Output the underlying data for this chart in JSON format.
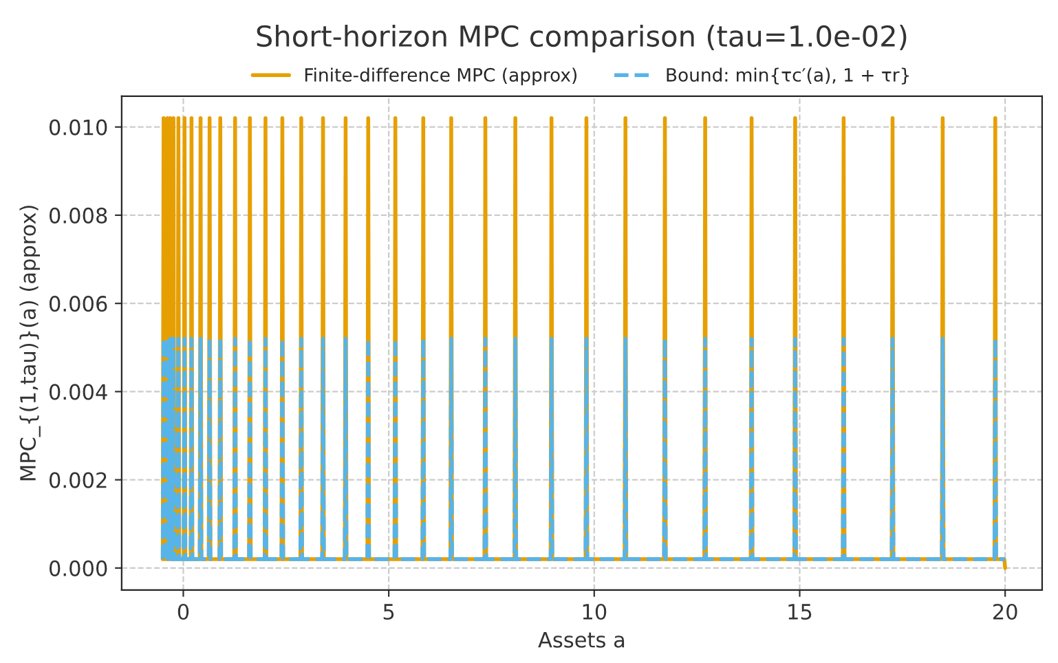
{
  "chart_data": {
    "type": "line",
    "title": "Short-horizon MPC comparison (tau=1.0e-02)",
    "xlabel": "Assets a",
    "ylabel": "MPC_{(1,tau)}(a) (approx)",
    "x": [
      -0.5,
      -0.48,
      -0.46,
      -0.41,
      -0.39,
      -0.37,
      -0.34,
      -0.32,
      -0.3,
      -0.26,
      -0.24,
      -0.22,
      -0.14,
      -0.12,
      -0.1,
      0.01,
      0.03,
      0.05,
      0.18,
      0.2,
      0.22,
      0.4,
      0.42,
      0.44,
      0.62,
      0.64,
      0.66,
      0.88,
      0.9,
      0.92,
      1.24,
      1.26,
      1.28,
      1.6,
      1.62,
      1.64,
      1.98,
      2.0,
      2.02,
      2.39,
      2.41,
      2.43,
      2.85,
      2.87,
      2.89,
      3.38,
      3.4,
      3.42,
      3.93,
      3.95,
      3.97,
      4.48,
      4.5,
      4.52,
      5.14,
      5.16,
      5.18,
      5.82,
      5.84,
      5.86,
      6.5,
      6.52,
      6.54,
      7.33,
      7.35,
      7.37,
      8.06,
      8.08,
      8.1,
      8.94,
      8.96,
      8.98,
      9.79,
      9.81,
      9.83,
      10.74,
      10.76,
      10.78,
      11.7,
      11.72,
      11.74,
      12.68,
      12.7,
      12.72,
      13.81,
      13.83,
      13.85,
      14.87,
      14.89,
      14.91,
      16.05,
      16.07,
      16.09,
      17.24,
      17.26,
      17.28,
      18.46,
      18.48,
      18.5,
      19.74,
      19.76,
      19.78,
      19.98,
      20
    ],
    "series": [
      {
        "name": "Finite-difference MPC (approx)",
        "color": "#e69f00",
        "line_style": "solid",
        "values": [
          0.0002,
          0.0102,
          0.0002,
          0.0002,
          0.0102,
          0.0002,
          0.0002,
          0.0102,
          0.0002,
          0.0002,
          0.0102,
          0.0002,
          0.0002,
          0.0102,
          0.0002,
          0.0002,
          0.0102,
          0.0002,
          0.0002,
          0.0102,
          0.0002,
          0.0002,
          0.0102,
          0.0002,
          0.0002,
          0.0102,
          0.0002,
          0.0002,
          0.0102,
          0.0002,
          0.0002,
          0.0102,
          0.0002,
          0.0002,
          0.0102,
          0.0002,
          0.0002,
          0.0102,
          0.0002,
          0.0002,
          0.0102,
          0.0002,
          0.0002,
          0.0102,
          0.0002,
          0.0002,
          0.0102,
          0.0002,
          0.0002,
          0.0102,
          0.0002,
          0.0002,
          0.0102,
          0.0002,
          0.0002,
          0.0102,
          0.0002,
          0.0002,
          0.0102,
          0.0002,
          0.0002,
          0.0102,
          0.0002,
          0.0002,
          0.0102,
          0.0002,
          0.0002,
          0.0102,
          0.0002,
          0.0002,
          0.0102,
          0.0002,
          0.0002,
          0.0102,
          0.0002,
          0.0002,
          0.0102,
          0.0002,
          0.0002,
          0.0102,
          0.0002,
          0.0002,
          0.0102,
          0.0002,
          0.0002,
          0.0102,
          0.0002,
          0.0002,
          0.0102,
          0.0002,
          0.0002,
          0.0102,
          0.0002,
          0.0002,
          0.0102,
          0.0002,
          0.0002,
          0.0102,
          0.0002,
          0.0002,
          0.0102,
          0.0002,
          0.0002,
          0.0
        ]
      },
      {
        "name": "Bound: min{τc′(a), 1 + τr}",
        "color": "#56b4e9",
        "line_style": "dashed",
        "values": [
          0.0002,
          0.0052,
          0.0002,
          0.0002,
          0.0052,
          0.0002,
          0.0002,
          0.0052,
          0.0002,
          0.0002,
          0.0052,
          0.0002,
          0.0002,
          0.0052,
          0.0002,
          0.0002,
          0.0052,
          0.0002,
          0.0002,
          0.0052,
          0.0002,
          0.0002,
          0.0052,
          0.0002,
          0.0002,
          0.0052,
          0.0002,
          0.0002,
          0.0052,
          0.0002,
          0.0002,
          0.0052,
          0.0002,
          0.0002,
          0.0052,
          0.0002,
          0.0002,
          0.0052,
          0.0002,
          0.0002,
          0.0052,
          0.0002,
          0.0002,
          0.0052,
          0.0002,
          0.0002,
          0.0052,
          0.0002,
          0.0002,
          0.0052,
          0.0002,
          0.0002,
          0.0052,
          0.0002,
          0.0002,
          0.0052,
          0.0002,
          0.0002,
          0.0052,
          0.0002,
          0.0002,
          0.0052,
          0.0002,
          0.0002,
          0.0052,
          0.0002,
          0.0002,
          0.0052,
          0.0002,
          0.0002,
          0.0052,
          0.0002,
          0.0002,
          0.0052,
          0.0002,
          0.0002,
          0.0052,
          0.0002,
          0.0002,
          0.0052,
          0.0002,
          0.0002,
          0.0052,
          0.0002,
          0.0002,
          0.0052,
          0.0002,
          0.0002,
          0.0052,
          0.0002,
          0.0002,
          0.0052,
          0.0002,
          0.0002,
          0.0052,
          0.0002,
          0.0002,
          0.0052,
          0.0002,
          0.0002,
          0.0052,
          0.0002,
          0.0002,
          0.0002
        ]
      }
    ],
    "xlim": [
      -1.5,
      20.9
    ],
    "xticks": [
      0,
      5,
      10,
      15,
      20
    ],
    "ylim": [
      -0.0005,
      0.0107
    ],
    "yticks": [
      {
        "value": 0,
        "label": "0.000"
      },
      {
        "value": 0.002,
        "label": "0.002"
      },
      {
        "value": 0.004,
        "label": "0.004"
      },
      {
        "value": 0.006,
        "label": "0.006"
      },
      {
        "value": 0.008,
        "label": "0.008"
      },
      {
        "value": 0.01,
        "label": "0.010"
      }
    ],
    "grid": true,
    "legend": "top"
  }
}
